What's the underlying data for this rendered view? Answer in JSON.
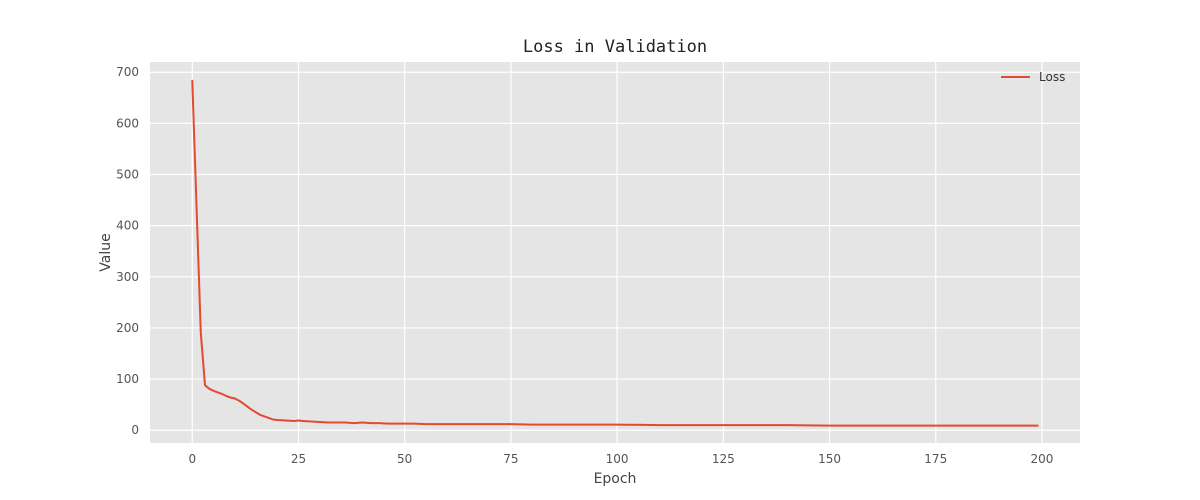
{
  "chart_data": {
    "type": "line",
    "title": "Loss in Validation",
    "xlabel": "Epoch",
    "ylabel": "Value",
    "xlim": [
      -9.95,
      208.95
    ],
    "ylim": [
      -25,
      720
    ],
    "xticks": [
      0,
      25,
      50,
      75,
      100,
      125,
      150,
      175,
      200
    ],
    "yticks": [
      0,
      100,
      200,
      300,
      400,
      500,
      600,
      700
    ],
    "grid": true,
    "legend_position": "top-right",
    "series": [
      {
        "name": "Loss",
        "color": "#E24A33",
        "x": [
          0,
          2,
          3,
          4,
          5,
          6,
          7,
          8,
          9,
          10,
          11,
          12,
          13,
          14,
          15,
          16,
          17,
          18,
          19,
          20,
          22,
          24,
          25,
          26,
          28,
          30,
          32,
          34,
          36,
          38,
          40,
          42,
          44,
          46,
          48,
          50,
          52,
          55,
          60,
          65,
          70,
          75,
          80,
          85,
          90,
          95,
          100,
          110,
          120,
          130,
          140,
          150,
          160,
          170,
          180,
          190,
          199
        ],
        "y": [
          683,
          190,
          88,
          81,
          77,
          74,
          71,
          67,
          64,
          62,
          58,
          52,
          46,
          40,
          35,
          30,
          27,
          24,
          21,
          20,
          19,
          18,
          19,
          18,
          17,
          16,
          15,
          15,
          15,
          14,
          15,
          14,
          14,
          13,
          13,
          13,
          13,
          12,
          12,
          12,
          12,
          12,
          11,
          11,
          11,
          11,
          11,
          10,
          10,
          10,
          10,
          9,
          9,
          9,
          9,
          9,
          9
        ]
      }
    ]
  }
}
